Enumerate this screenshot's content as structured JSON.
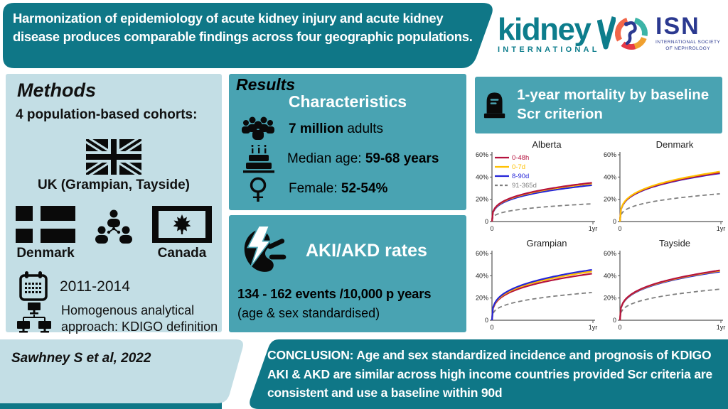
{
  "banner": {
    "title": "Harmonization of epidemiology of acute kidney injury and acute kidney disease produces comparable findings across four geographic populations."
  },
  "logos": {
    "kidney_international": {
      "word": "kidney",
      "subtitle": "INTERNATIONAL"
    },
    "isn": {
      "abbr": "ISN",
      "subtitle_line1": "INTERNATIONAL SOCIETY",
      "subtitle_line2": "OF NEPHROLOGY"
    }
  },
  "methods": {
    "heading": "Methods",
    "cohorts_line": "4 population-based cohorts:",
    "uk_label": "UK (Grampian, Tayside)",
    "denmark_label": "Denmark",
    "canada_label": "Canada",
    "period": "2011-2014",
    "approach_line1": "Homogenous analytical",
    "approach_line2": "approach: KDIGO definition"
  },
  "results": {
    "heading": "Results",
    "characteristics": {
      "title": "Characteristics",
      "items": [
        {
          "pre": "",
          "bold": "7 million",
          "rest": " adults"
        },
        {
          "pre": "Median age: ",
          "bold": "59-68 years",
          "rest": ""
        },
        {
          "pre": "Female: ",
          "bold": "52-54%",
          "rest": ""
        }
      ]
    },
    "rates": {
      "title": "AKI/AKD rates",
      "line1": "134 - 162 events /10,000 p years",
      "line2": "(age & sex standardised)"
    }
  },
  "mortality": {
    "title": "1-year mortality by baseline Scr criterion"
  },
  "citation": "Sawhney S et al, 2022",
  "conclusion": "CONCLUSION: Age and sex standardized incidence and prognosis of KDIGO AKI & AKD are similar across high income countries provided Scr criteria are consistent and use a baseline within 90d",
  "colors": {
    "dark_teal": "#0f7787",
    "mid_teal": "#49a3b2",
    "light_blue": "#c3dee5",
    "brand_teal": "#0d7d8c",
    "isn_navy": "#2b3990",
    "series_red": "#b5123e",
    "series_yellow": "#ffc000",
    "series_blue": "#2424d8",
    "series_gray": "#7f7f7f"
  },
  "chart_data": [
    {
      "type": "line",
      "title": "Alberta",
      "show_legend": true,
      "x_ticks": [
        "0",
        "1yr"
      ],
      "ylim": [
        0,
        60
      ],
      "exponent": 0.3,
      "y_ticks": [
        {
          "v": 0,
          "label": "0"
        },
        {
          "v": 20,
          "label": "20%"
        },
        {
          "v": 40,
          "label": "40%"
        },
        {
          "v": 60,
          "label": "60%"
        }
      ],
      "series": [
        {
          "name": "0-48h",
          "color": "#b5123e",
          "dashed": false,
          "end": 35
        },
        {
          "name": "0-7d",
          "color": "#ffc000",
          "dashed": false,
          "end": 34.3
        },
        {
          "name": "8-90d",
          "color": "#2424d8",
          "dashed": false,
          "end": 32.8
        },
        {
          "name": "91-365d",
          "color": "#7f7f7f",
          "dashed": true,
          "end": 16
        }
      ]
    },
    {
      "type": "line",
      "title": "Denmark",
      "show_legend": false,
      "x_ticks": [
        "0",
        "1yr"
      ],
      "ylim": [
        0,
        60
      ],
      "exponent": 0.3,
      "y_ticks": [
        {
          "v": 0,
          "label": "0"
        },
        {
          "v": 20,
          "label": "20%"
        },
        {
          "v": 40,
          "label": "40%"
        },
        {
          "v": 60,
          "label": "60%"
        }
      ],
      "series": [
        {
          "name": "0-48h",
          "color": "#b5123e",
          "dashed": false,
          "end": 44
        },
        {
          "name": "0-7d",
          "color": "#ffc000",
          "dashed": false,
          "end": 45
        },
        {
          "name": "8-90d",
          "color": "#2424d8",
          "dashed": false,
          "end": 43.5
        },
        {
          "name": "91-365d",
          "color": "#7f7f7f",
          "dashed": true,
          "end": 25
        }
      ]
    },
    {
      "type": "line",
      "title": "Grampian",
      "show_legend": false,
      "x_ticks": [
        "0",
        "1yr"
      ],
      "ylim": [
        0,
        60
      ],
      "exponent": 0.3,
      "y_ticks": [
        {
          "v": 0,
          "label": "0"
        },
        {
          "v": 20,
          "label": "20%"
        },
        {
          "v": 40,
          "label": "40%"
        },
        {
          "v": 60,
          "label": "60%"
        }
      ],
      "series": [
        {
          "name": "0-48h",
          "color": "#b5123e",
          "dashed": false,
          "end": 42
        },
        {
          "name": "0-7d",
          "color": "#ffc000",
          "dashed": false,
          "end": 44
        },
        {
          "name": "8-90d",
          "color": "#2424d8",
          "dashed": false,
          "end": 45.5
        },
        {
          "name": "91-365d",
          "color": "#7f7f7f",
          "dashed": true,
          "end": 25
        }
      ]
    },
    {
      "type": "line",
      "title": "Tayside",
      "show_legend": false,
      "x_ticks": [
        "0",
        "1yr"
      ],
      "ylim": [
        0,
        60
      ],
      "exponent": 0.3,
      "y_ticks": [
        {
          "v": 0,
          "label": "0"
        },
        {
          "v": 20,
          "label": "20%"
        },
        {
          "v": 40,
          "label": "40%"
        },
        {
          "v": 60,
          "label": "60%"
        }
      ],
      "series": [
        {
          "name": "0-48h",
          "color": "#b5123e",
          "dashed": false,
          "end": 45
        },
        {
          "name": "0-7d",
          "color": "#ffc000",
          "dashed": false,
          "end": 44.5
        },
        {
          "name": "8-90d",
          "color": "#2424d8",
          "dashed": false,
          "end": 43.8
        },
        {
          "name": "91-365d",
          "color": "#7f7f7f",
          "dashed": true,
          "end": 28
        }
      ]
    }
  ]
}
